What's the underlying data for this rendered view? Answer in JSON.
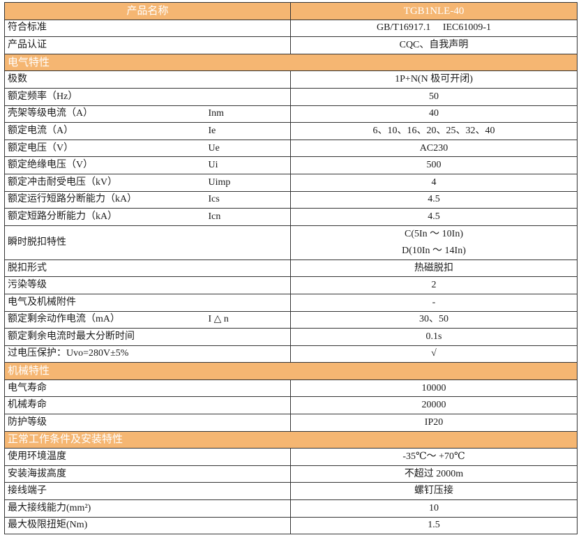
{
  "header": {
    "label": "产品名称",
    "value": "TGB1NLE-40"
  },
  "rows": [
    {
      "type": "row",
      "name": "符合标准",
      "symbol": "",
      "value": "GB/T16917.1　 IEC61009-1"
    },
    {
      "type": "row",
      "name": "产品认证",
      "symbol": "",
      "value": "CQC、自我声明"
    },
    {
      "type": "section",
      "name": "电气特性"
    },
    {
      "type": "row",
      "name": "极数",
      "symbol": "",
      "value": "1P+N(N 极可开闭)"
    },
    {
      "type": "row",
      "name": "额定频率（Hz）",
      "symbol": "",
      "value": "50"
    },
    {
      "type": "row",
      "name": "壳架等级电流（A）",
      "symbol": "Inm",
      "value": "40"
    },
    {
      "type": "row",
      "name": "额定电流（A）",
      "symbol": "Ie",
      "value": "6、10、16、20、25、32、40"
    },
    {
      "type": "row",
      "name": "额定电压（V）",
      "symbol": "Ue",
      "value": "AC230"
    },
    {
      "type": "row",
      "name": "额定绝缘电压（V）",
      "symbol": "Ui",
      "value": "500"
    },
    {
      "type": "row",
      "name": "额定冲击耐受电压（kV）",
      "symbol": "Uimp",
      "value": "4"
    },
    {
      "type": "row",
      "name": "额定运行短路分断能力（kA）",
      "symbol": "Ics",
      "value": "4.5"
    },
    {
      "type": "row",
      "name": "额定短路分断能力（kA）",
      "symbol": "Icn",
      "value": "4.5"
    },
    {
      "type": "double",
      "name": "瞬时脱扣特性",
      "symbol": "",
      "value": "C(5In ～ 10In)",
      "value2": "D(10In ～ 14In)"
    },
    {
      "type": "row",
      "name": "脱扣形式",
      "symbol": "",
      "value": "热磁脱扣"
    },
    {
      "type": "row",
      "name": "污染等级",
      "symbol": "",
      "value": "2"
    },
    {
      "type": "row",
      "name": "电气及机械附件",
      "symbol": "",
      "value": "-"
    },
    {
      "type": "row",
      "name": "额定剩余动作电流（mA）",
      "symbol": "I △ n",
      "value": "30、50"
    },
    {
      "type": "row",
      "name": "额定剩余电流时最大分断时间",
      "symbol": "",
      "value": "0.1s"
    },
    {
      "type": "row",
      "name": "过电压保护：Uvo=280V±5%",
      "symbol": "",
      "value": "√"
    },
    {
      "type": "section",
      "name": "机械特性"
    },
    {
      "type": "row",
      "name": "电气寿命",
      "symbol": "",
      "value": "10000"
    },
    {
      "type": "row",
      "name": "机械寿命",
      "symbol": "",
      "value": "20000"
    },
    {
      "type": "row",
      "name": "防护等级",
      "symbol": "",
      "value": "IP20"
    },
    {
      "type": "section",
      "name": "正常工作条件及安装特性"
    },
    {
      "type": "row",
      "name": "使用环境温度",
      "symbol": "",
      "value": "-35℃～ +70℃"
    },
    {
      "type": "row",
      "name": "安装海拔高度",
      "symbol": "",
      "value": "不超过 2000m"
    },
    {
      "type": "row",
      "name": "接线端子",
      "symbol": "",
      "value": "螺钉压接"
    },
    {
      "type": "row",
      "name": "最大接线能力(mm²)",
      "symbol": "",
      "value": "10"
    },
    {
      "type": "row",
      "name": "最大极限扭矩(Nm)",
      "symbol": "",
      "value": "1.5"
    }
  ],
  "colors": {
    "header_bg": "#f5b672",
    "header_text": "#ffffff",
    "border": "#333333"
  }
}
